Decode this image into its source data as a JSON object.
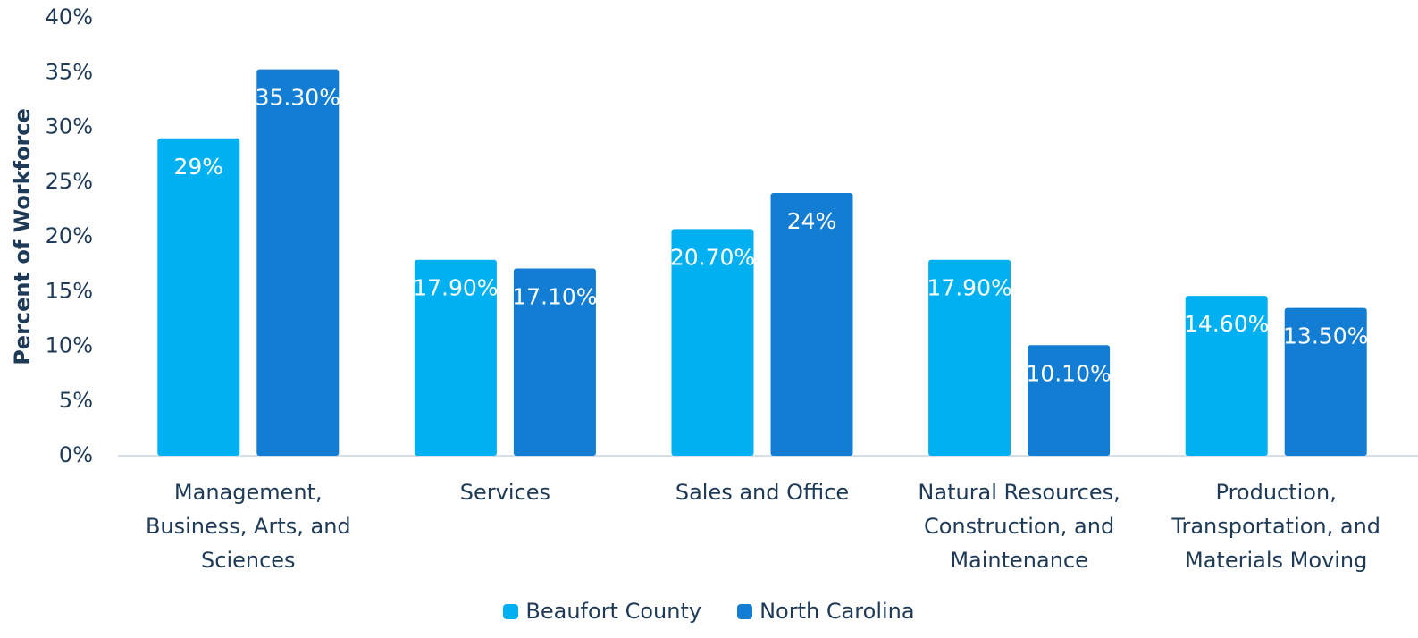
{
  "chart_data": {
    "type": "bar",
    "y_label": "Percent of Workforce",
    "categories": [
      "Management, Business, Arts, and Sciences",
      "Services",
      "Sales and Office",
      "Natural Resources, Construction, and Maintenance",
      "Production, Transportation, and Materials Moving"
    ],
    "series": [
      {
        "name": "Beaufort County",
        "color": "#00b0f0",
        "values": [
          29,
          17.9,
          20.7,
          17.9,
          14.6
        ],
        "value_labels": [
          "29%",
          "17.90%",
          "20.70%",
          "17.90%",
          "14.60%"
        ]
      },
      {
        "name": "North Carolina",
        "color": "#137dd3",
        "values": [
          35.3,
          17.1,
          24,
          10.1,
          13.5
        ],
        "value_labels": [
          "35.30%",
          "17.10%",
          "24%",
          "10.10%",
          "13.50%"
        ]
      }
    ],
    "ylim": [
      0,
      40
    ],
    "yticks": [
      {
        "value": 0,
        "label": "0%"
      },
      {
        "value": 5,
        "label": "5%"
      },
      {
        "value": 10,
        "label": "10%"
      },
      {
        "value": 15,
        "label": "15%"
      },
      {
        "value": 20,
        "label": "20%"
      },
      {
        "value": 25,
        "label": "25%"
      },
      {
        "value": 30,
        "label": "30%"
      },
      {
        "value": 35,
        "label": "35%"
      },
      {
        "value": 40,
        "label": "40%"
      }
    ],
    "legend": "bottom"
  }
}
